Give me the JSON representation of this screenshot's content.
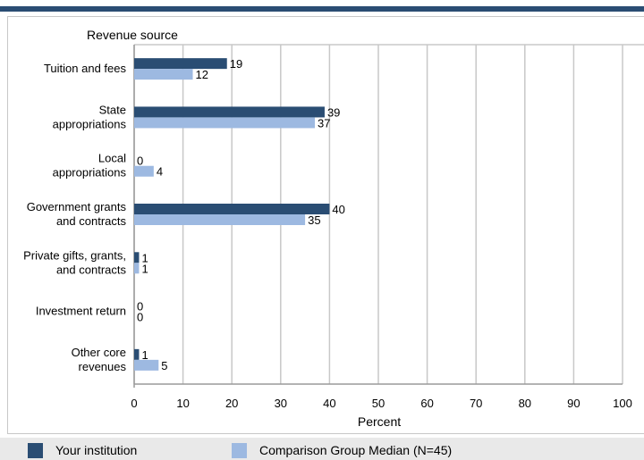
{
  "chart_data": {
    "type": "bar",
    "orientation": "horizontal",
    "title": "Revenue source",
    "xlabel": "Percent",
    "ylabel": "",
    "xlim": [
      0,
      100
    ],
    "xticks": [
      0,
      10,
      20,
      30,
      40,
      50,
      60,
      70,
      80,
      90,
      100
    ],
    "grid": true,
    "legend_position": "bottom",
    "categories": [
      [
        "Tuition and fees"
      ],
      [
        "State",
        "appropriations"
      ],
      [
        "Local",
        "appropriations"
      ],
      [
        "Government grants",
        "and contracts"
      ],
      [
        "Private gifts, grants,",
        "and contracts"
      ],
      [
        "Investment return"
      ],
      [
        "Other core",
        "revenues"
      ]
    ],
    "series": [
      {
        "name": "Your institution",
        "color": "#2a4d73",
        "values": [
          19,
          39,
          0,
          40,
          1,
          0,
          1
        ]
      },
      {
        "name": "Comparison Group Median (N=45)",
        "color": "#9db9e1",
        "values": [
          12,
          37,
          4,
          35,
          1,
          0,
          5
        ]
      }
    ]
  },
  "colors": {
    "accent_bar": "#2a4d73",
    "gridline": "#c8c8c8",
    "legend_background": "#e9e9e9"
  }
}
